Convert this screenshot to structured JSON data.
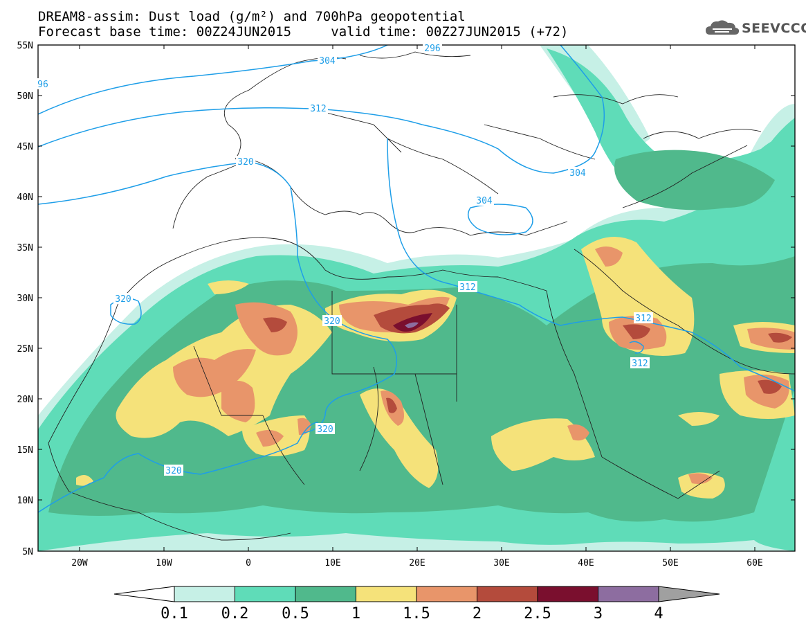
{
  "title_line1": "DREAM8-assim: Dust load (g/m²) and 700hPa geopotential",
  "title_line2_base": "Forecast base time: 00Z24JUN2015",
  "title_line2_valid": "valid time: 00Z27JUN2015 (+72)",
  "logo_text": "SEEVCCC",
  "lat_labels": [
    "55N",
    "50N",
    "45N",
    "40N",
    "35N",
    "30N",
    "25N",
    "20N",
    "15N",
    "10N",
    "5N"
  ],
  "lon_labels": [
    "20W",
    "10W",
    "0",
    "10E",
    "20E",
    "30E",
    "40E",
    "50E",
    "60E"
  ],
  "contour_labels": [
    "296",
    "304",
    "96",
    "312",
    "320",
    "304",
    "304",
    "312",
    "320",
    "320",
    "320",
    "320",
    "312",
    "312"
  ],
  "colorbar": {
    "labels": [
      "0.1",
      "0.2",
      "0.5",
      "1",
      "1.5",
      "2",
      "2.5",
      "3",
      "4"
    ],
    "colors": [
      "#c6f0e6",
      "#5fdcb8",
      "#50b98c",
      "#f5e27a",
      "#e8956a",
      "#b44b3c",
      "#7a0f2e",
      "#8d6da0"
    ]
  },
  "colors": {
    "lvl1": "#c6f0e6",
    "lvl2": "#5fdcb8",
    "lvl3": "#50b98c",
    "lvl4": "#f5e27a",
    "lvl5": "#e8956a",
    "lvl6": "#b44b3c",
    "lvl7": "#7a0f2e",
    "lvl8": "#8d6da0",
    "contour": "#1e9ee8"
  }
}
